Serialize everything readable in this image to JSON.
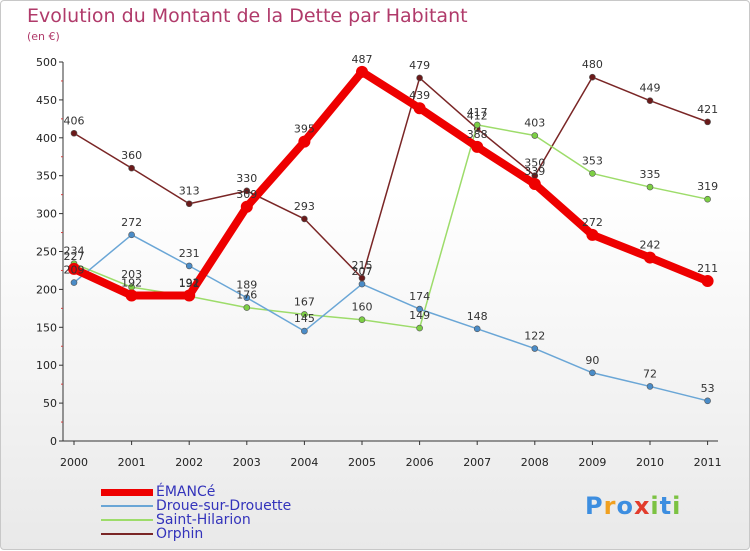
{
  "header": {
    "title": "Evolution du Montant de la Dette par Habitant",
    "subtitle": "(en €)"
  },
  "chart_data": {
    "type": "line",
    "title": "Evolution du Montant de la Dette par Habitant",
    "subtitle": "(en €)",
    "categories": [
      "2000",
      "2001",
      "2002",
      "2003",
      "2004",
      "2005",
      "2006",
      "2007",
      "2008",
      "2009",
      "2010",
      "2011"
    ],
    "ylim": [
      0,
      500
    ],
    "yticks": [
      0,
      50,
      100,
      150,
      200,
      250,
      300,
      350,
      400,
      450,
      500
    ],
    "grid": false,
    "legend_position": "bottom-left",
    "series": [
      {
        "name": "Orphin",
        "color": "#7a2626",
        "marker": "#6b1a1a",
        "values": [
          406,
          360,
          313,
          330,
          293,
          215,
          479,
          412,
          350,
          480,
          449,
          421
        ]
      },
      {
        "name": "Saint-Hilarion",
        "color": "#9ddc6a",
        "marker": "#7ccf44",
        "values": [
          234,
          203,
          191,
          176,
          167,
          160,
          149,
          417,
          403,
          353,
          335,
          319
        ]
      },
      {
        "name": "Droue-sur-Drouette",
        "color": "#6aa6d6",
        "marker": "#4a8cc8",
        "values": [
          209,
          272,
          231,
          189,
          145,
          207,
          174,
          148,
          122,
          90,
          72,
          53
        ]
      },
      {
        "name": "ÉMANCé",
        "color": "#ee0000",
        "marker": "#ee0000",
        "values": [
          227,
          192,
          192,
          309,
          395,
          487,
          439,
          388,
          339,
          272,
          242,
          211
        ]
      }
    ]
  },
  "legend": {
    "items": [
      {
        "label": "ÉMANCé",
        "color": "#ee0000",
        "thickness": 7
      },
      {
        "label": "Droue-sur-Drouette",
        "color": "#6aa6d6",
        "thickness": 2
      },
      {
        "label": "Saint-Hilarion",
        "color": "#9ddc6a",
        "thickness": 2
      },
      {
        "label": "Orphin",
        "color": "#7a2626",
        "thickness": 2
      }
    ]
  },
  "logo": {
    "text": "Proxiti",
    "letters": [
      {
        "ch": "P",
        "color": "#3d8ee0"
      },
      {
        "ch": "r",
        "color": "#f0a020"
      },
      {
        "ch": "o",
        "color": "#3d8ee0"
      },
      {
        "ch": "x",
        "color": "#e23c2c"
      },
      {
        "ch": "i",
        "color": "#7cc242"
      },
      {
        "ch": "t",
        "color": "#3d8ee0"
      },
      {
        "ch": "i",
        "color": "#7cc242"
      }
    ]
  }
}
